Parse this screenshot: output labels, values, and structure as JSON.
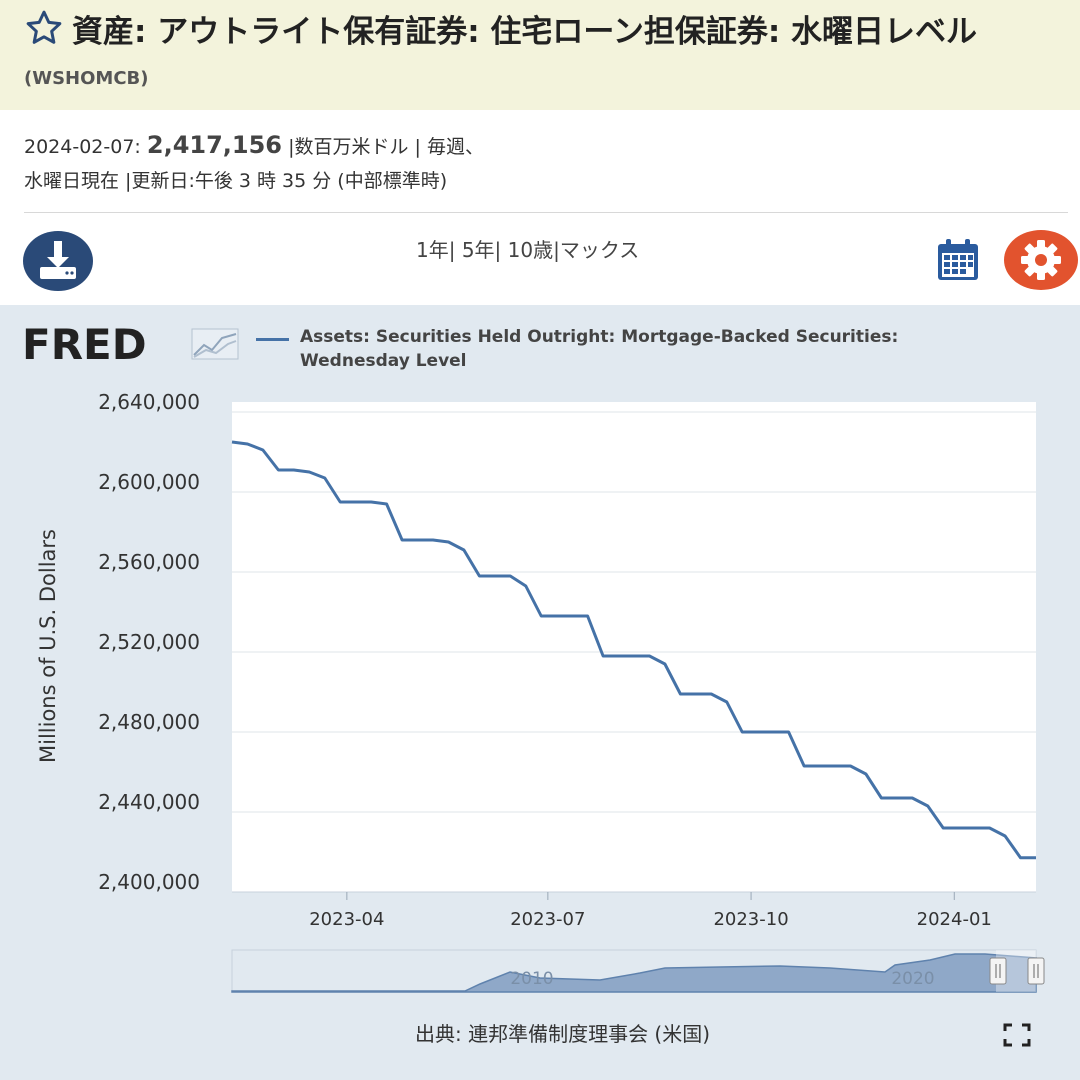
{
  "header": {
    "title": "資産: アウトライト保有証券: 住宅ローン担保証券: 水曜日レベル",
    "series_id": "(WSHOMCB)"
  },
  "meta": {
    "date": "2024-02-07:",
    "value": "2,417,156",
    "units_line": "|数百万米ドル | 毎週、",
    "line2": "水曜日現在 |更新日:午後 3 時 35 分 (中部標準時)"
  },
  "toolbar": {
    "ranges": "1年| 5年| 10歳|マックス",
    "download_icon": "download-icon",
    "calendar_icon": "calendar-icon",
    "settings_icon": "gear-icon"
  },
  "chart_data": {
    "type": "line",
    "title": "",
    "legend": [
      "Assets: Securities Held Outright: Mortgage-Backed Securities:",
      "Wednesday Level"
    ],
    "ylabel": "Millions of U.S. Dollars",
    "xlabel": "",
    "ylim": [
      2400000,
      2640000
    ],
    "yticks": [
      "2,640,000",
      "2,600,000",
      "2,560,000",
      "2,520,000",
      "2,480,000",
      "2,440,000",
      "2,400,000"
    ],
    "xticks": [
      "2023-04",
      "2023-07",
      "2023-10",
      "2024-01"
    ],
    "grid": true,
    "series": [
      {
        "name": "Assets: Securities Held Outright: Mortgage-Backed Securities: Wednesday Level",
        "color": "#4572a7",
        "x": [
          "2023-02-08",
          "2023-02-15",
          "2023-02-22",
          "2023-03-01",
          "2023-03-08",
          "2023-03-15",
          "2023-03-22",
          "2023-03-29",
          "2023-04-05",
          "2023-04-12",
          "2023-04-19",
          "2023-04-26",
          "2023-05-03",
          "2023-05-10",
          "2023-05-17",
          "2023-05-24",
          "2023-05-31",
          "2023-06-07",
          "2023-06-14",
          "2023-06-21",
          "2023-06-28",
          "2023-07-05",
          "2023-07-12",
          "2023-07-19",
          "2023-07-26",
          "2023-08-02",
          "2023-08-09",
          "2023-08-16",
          "2023-08-23",
          "2023-08-30",
          "2023-09-06",
          "2023-09-13",
          "2023-09-20",
          "2023-09-27",
          "2023-10-04",
          "2023-10-11",
          "2023-10-18",
          "2023-10-25",
          "2023-11-01",
          "2023-11-08",
          "2023-11-15",
          "2023-11-22",
          "2023-11-29",
          "2023-12-06",
          "2023-12-13",
          "2023-12-20",
          "2023-12-27",
          "2024-01-03",
          "2024-01-10",
          "2024-01-17",
          "2024-01-24",
          "2024-01-31",
          "2024-02-07"
        ],
        "values": [
          2625000,
          2624000,
          2621000,
          2611000,
          2611000,
          2610000,
          2607000,
          2595000,
          2595000,
          2595000,
          2594000,
          2576000,
          2576000,
          2576000,
          2575000,
          2571000,
          2558000,
          2558000,
          2558000,
          2553000,
          2538000,
          2538000,
          2538000,
          2538000,
          2518000,
          2518000,
          2518000,
          2518000,
          2514000,
          2499000,
          2499000,
          2499000,
          2495000,
          2480000,
          2480000,
          2480000,
          2480000,
          2463000,
          2463000,
          2463000,
          2463000,
          2459000,
          2447000,
          2447000,
          2447000,
          2443000,
          2432000,
          2432000,
          2432000,
          2432000,
          2428000,
          2417156,
          2417156
        ]
      }
    ],
    "navigator": {
      "labels": [
        "2010",
        "2020"
      ]
    }
  },
  "source": "出典: 連邦準備制度理事会 (米国)"
}
